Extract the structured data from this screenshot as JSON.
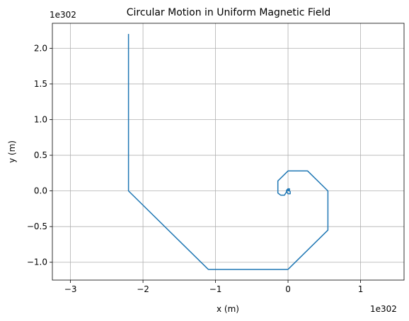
{
  "chart_data": {
    "type": "line",
    "title": "Circular Motion in Uniform Magnetic Field",
    "xlabel": "x (m)",
    "ylabel": "y (m)",
    "x_offset_label": "1e302",
    "y_offset_label": "1e302",
    "xlim": [
      -3.25,
      1.6
    ],
    "ylim": [
      -1.25,
      2.35
    ],
    "xticks": [
      -3,
      -2,
      -1,
      0,
      1
    ],
    "xtick_labels": [
      "−3",
      "−2",
      "−1",
      "0",
      "1"
    ],
    "yticks": [
      -1.0,
      -0.5,
      0.0,
      0.5,
      1.0,
      1.5,
      2.0
    ],
    "ytick_labels": [
      "−1.0",
      "−0.5",
      "0.0",
      "0.5",
      "1.0",
      "1.5",
      "2.0"
    ],
    "grid": true,
    "series": [
      {
        "color": "#1f77b4",
        "x": [
          0.0,
          0.02,
          0.02,
          0.0,
          -0.02,
          -0.02,
          0.0,
          0.03,
          0.03,
          0.0,
          -0.05,
          -0.1,
          -0.14,
          -0.14,
          0.0,
          0.27,
          0.55,
          0.55,
          0.0,
          -1.1,
          -2.2,
          -2.2
        ],
        "y": [
          0.0,
          0.01,
          0.03,
          0.03,
          0.01,
          -0.01,
          -0.04,
          -0.04,
          -0.01,
          0.02,
          -0.06,
          -0.06,
          -0.03,
          0.14,
          0.28,
          0.28,
          0.0,
          -0.55,
          -1.1,
          -1.1,
          0.0,
          2.2
        ]
      }
    ]
  }
}
